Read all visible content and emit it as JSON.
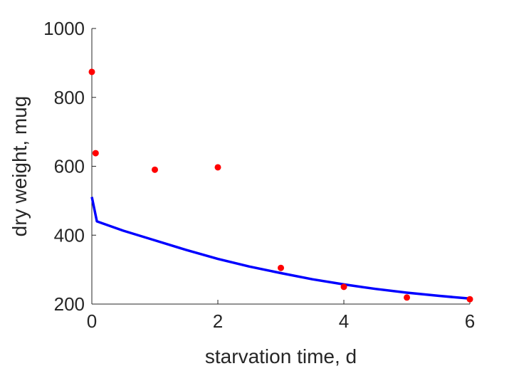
{
  "chart_data": {
    "type": "scatter",
    "title": "",
    "xlabel": "starvation time, d",
    "ylabel": "dry weight, mug",
    "xlim": [
      0,
      6
    ],
    "ylim": [
      200,
      1000
    ],
    "xticks": [
      0,
      2,
      4,
      6
    ],
    "yticks": [
      200,
      400,
      600,
      800,
      1000
    ],
    "grid": false,
    "legend": "none",
    "series": [
      {
        "type": "scatter",
        "color": "#ff0000",
        "points": [
          {
            "x": 0,
            "y": 874
          },
          {
            "x": 0.06,
            "y": 638
          },
          {
            "x": 1,
            "y": 590
          },
          {
            "x": 2,
            "y": 597
          },
          {
            "x": 3,
            "y": 305
          },
          {
            "x": 4,
            "y": 250
          },
          {
            "x": 5,
            "y": 219
          },
          {
            "x": 6,
            "y": 214
          }
        ]
      },
      {
        "type": "line",
        "color": "#0000ff",
        "points": [
          {
            "x": 0,
            "y": 511
          },
          {
            "x": 0.08,
            "y": 440
          },
          {
            "x": 0.5,
            "y": 413
          },
          {
            "x": 1,
            "y": 385
          },
          {
            "x": 1.5,
            "y": 357
          },
          {
            "x": 2,
            "y": 331
          },
          {
            "x": 2.5,
            "y": 309
          },
          {
            "x": 3,
            "y": 290
          },
          {
            "x": 3.5,
            "y": 272
          },
          {
            "x": 4,
            "y": 257
          },
          {
            "x": 4.5,
            "y": 244
          },
          {
            "x": 5,
            "y": 233
          },
          {
            "x": 5.5,
            "y": 224
          },
          {
            "x": 6,
            "y": 216
          }
        ]
      }
    ]
  }
}
